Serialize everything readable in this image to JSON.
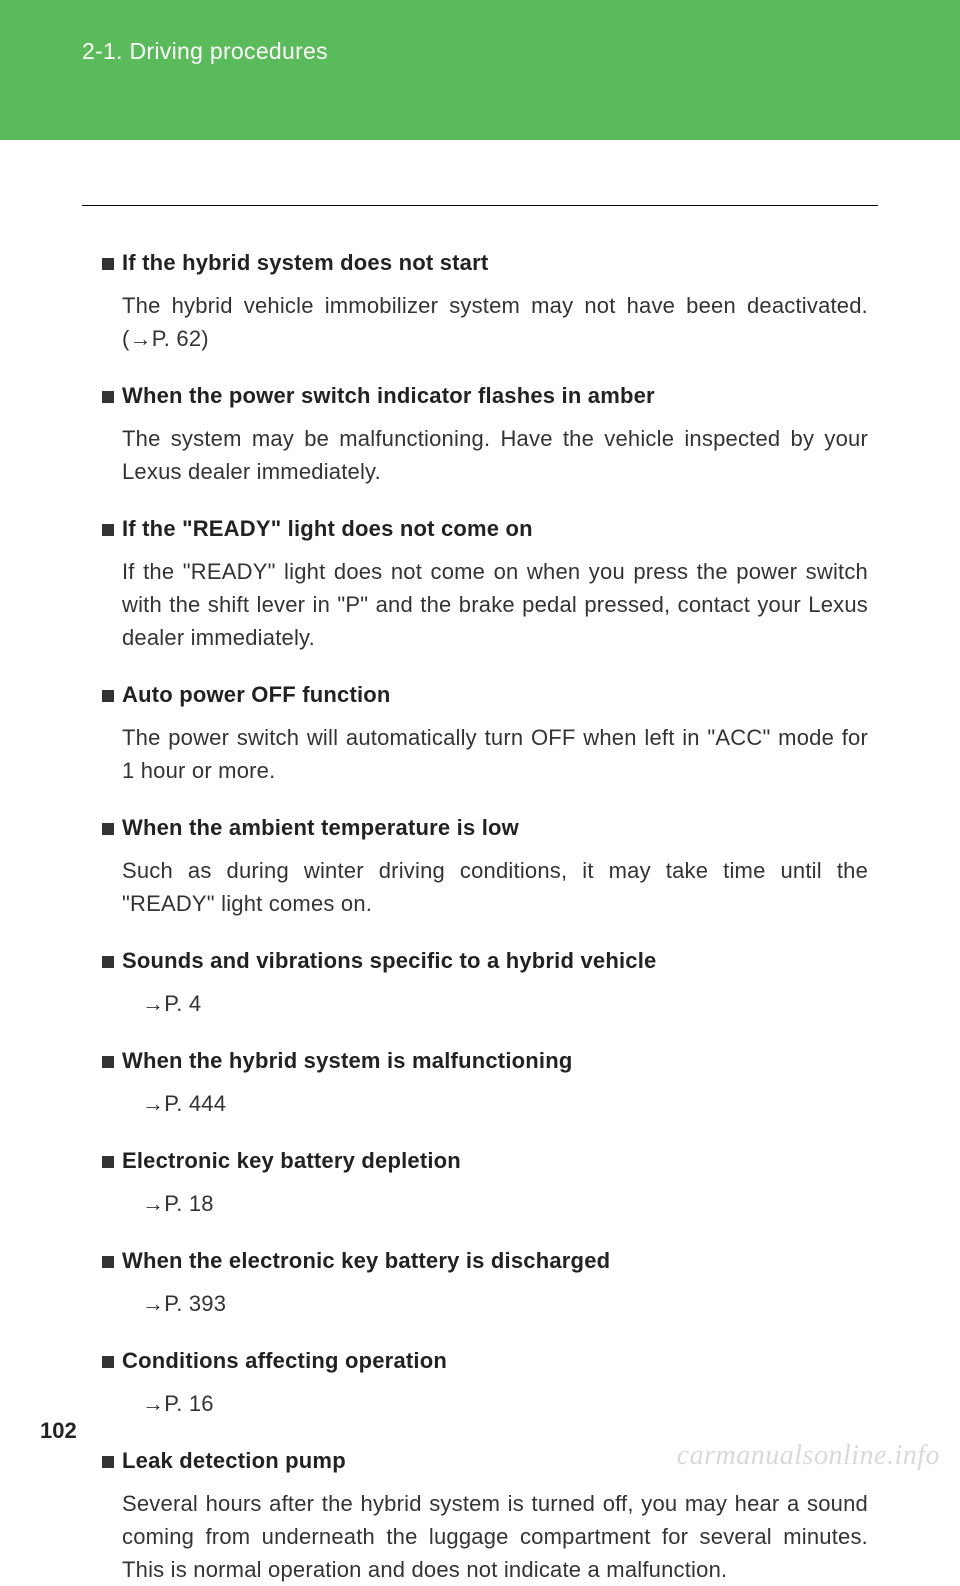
{
  "header": {
    "title": "2-1. Driving procedures"
  },
  "sections": [
    {
      "heading": "If the hybrid system does not start",
      "body": "The hybrid vehicle immobilizer system may not have been deactivated. (→P. 62)"
    },
    {
      "heading": "When the power switch indicator flashes in amber",
      "body": "The system may be malfunctioning. Have the vehicle inspected by your Lexus dealer immediately."
    },
    {
      "heading": "If the \"READY\" light does not come on",
      "body": "If the \"READY\" light does not come on when you press the power switch with the shift lever in \"P\" and the brake pedal pressed, contact your Lexus dealer immediately."
    },
    {
      "heading": "Auto power OFF function",
      "body": "The power switch will automatically turn OFF when left in \"ACC\" mode for 1 hour or more."
    },
    {
      "heading": "When the ambient temperature is low",
      "body": "Such as during winter driving conditions, it may take time until the \"READY\" light comes on."
    },
    {
      "heading": "Sounds and vibrations specific to a hybrid vehicle",
      "ref": "→P. 4"
    },
    {
      "heading": "When the hybrid system is malfunctioning",
      "ref": "→P. 444"
    },
    {
      "heading": "Electronic key battery depletion",
      "ref": "→P. 18"
    },
    {
      "heading": "When the electronic key battery is discharged",
      "ref": "→P. 393"
    },
    {
      "heading": "Conditions affecting operation",
      "ref": "→P. 16"
    },
    {
      "heading": "Leak detection pump",
      "body": "Several hours after the hybrid system is turned off, you may hear a sound coming from underneath the luggage compartment for several minutes. This is normal operation and does not indicate a malfunction."
    }
  ],
  "page_number": "102",
  "watermark": "carmanualsonline.info",
  "colors": {
    "header_bg": "#5abb5a",
    "header_text": "#ffffff",
    "bullet": "#333333",
    "text": "#222222",
    "watermark": "#d9d9d9"
  },
  "fonts": {
    "header_size": 23,
    "body_size": 22,
    "page_num_size": 22,
    "watermark_size": 28
  }
}
